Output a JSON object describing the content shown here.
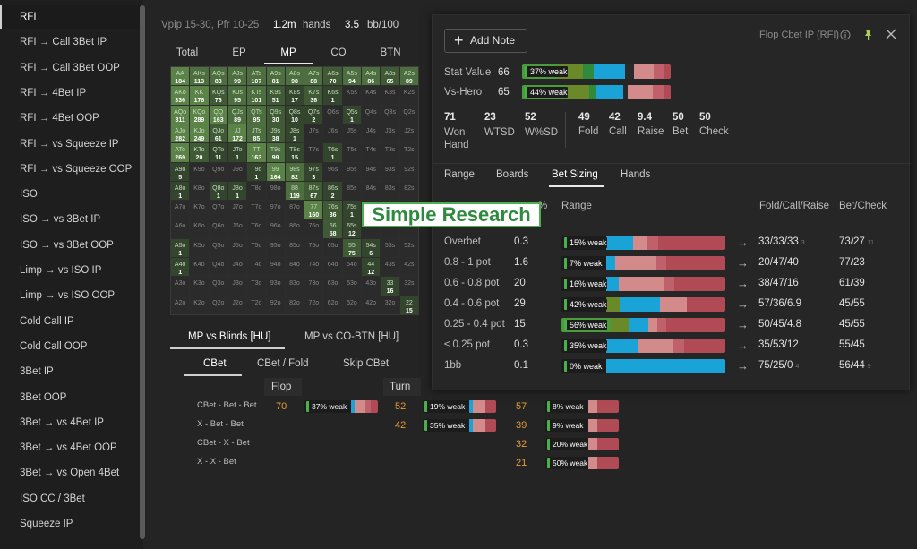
{
  "sidebar": {
    "items": [
      "RFI",
      "RFI → Call 3Bet IP",
      "RFI → Call 3Bet OOP",
      "RFI → 4Bet IP",
      "RFI → 4Bet OOP",
      "RFI → vs Squeeze IP",
      "RFI → vs Squeeze OOP",
      "ISO",
      "ISO → vs 3Bet IP",
      "ISO → vs 3Bet OOP",
      "Limp → vs ISO IP",
      "Limp → vs ISO OOP",
      "Cold Call IP",
      "Cold Call OOP",
      "3Bet IP",
      "3Bet OOP",
      "3Bet → vs 4Bet IP",
      "3Bet → vs 4Bet OOP",
      "3Bet → vs Open 4Bet",
      "ISO CC / 3Bet",
      "Squeeze IP"
    ]
  },
  "filter": {
    "text": "Vpip 15-30, Pfr 10-25",
    "hands_value": "1.2m",
    "hands_label": "hands",
    "bb_value": "3.5",
    "bb_label": "bb/100"
  },
  "position_tabs": [
    "Total",
    "EP",
    "MP",
    "CO",
    "BTN"
  ],
  "range_grid": [
    [
      "AA|184",
      "AKs|113",
      "AQs|83",
      "AJs|99",
      "ATs|107",
      "A9s|81",
      "A8s|98",
      "A7s|88",
      "A6s|70",
      "A5s|94",
      "A4s|86",
      "A3s|65",
      "A2s|89"
    ],
    [
      "AKo|336",
      "KK|176",
      "KQs|76",
      "KJs|95",
      "KTs|101",
      "K9s|51",
      "K8s|17",
      "K7s|36",
      "K6s|1",
      "K5s",
      "K4s",
      "K3s",
      "K2s"
    ],
    [
      "AQo|311",
      "KQo|289",
      "QQ|163",
      "QJs|89",
      "QTs|95",
      "Q9s|30",
      "Q8s|10",
      "Q7s|2",
      "Q6s",
      "Q5s|1",
      "Q4s",
      "Q3s",
      "Q2s"
    ],
    [
      "AJo|282",
      "KJo|249",
      "QJo|61",
      "JJ|172",
      "JTs|85",
      "J9s|38",
      "J8s|1",
      "J7s",
      "J6s",
      "J5s",
      "J4s",
      "J3s",
      "J2s"
    ],
    [
      "ATo|269",
      "KTo|20",
      "QTo|11",
      "JTo|1",
      "TT|163",
      "T9s|99",
      "T8s|15",
      "T7s",
      "T6s|1",
      "T5s",
      "T4s",
      "T3s",
      "T2s"
    ],
    [
      "A9o|5",
      "K9o",
      "Q9o",
      "J9o",
      "T9o|1",
      "99|164",
      "98s|82",
      "97s|3",
      "96s",
      "95s",
      "94s",
      "93s",
      "92s"
    ],
    [
      "A8o|1",
      "K8o",
      "Q8o|1",
      "J8o|1",
      "T8o",
      "98o",
      "88|119",
      "87s|67",
      "86s|2",
      "85s",
      "84s",
      "83s",
      "82s"
    ],
    [
      "A7o",
      "K7o",
      "Q7o",
      "J7o",
      "T7o",
      "97o",
      "87o",
      "77|160",
      "76s|36",
      "75s|1",
      "74s",
      "73s",
      "72s"
    ],
    [
      "A6o",
      "K6o",
      "Q6o",
      "J6o",
      "T6o",
      "96o",
      "86o",
      "76o",
      "66|58",
      "65s|12",
      "64s",
      "63s",
      "62s"
    ],
    [
      "A5o|1",
      "K5o",
      "Q5o",
      "J5o",
      "T5o",
      "95o",
      "85o",
      "75o",
      "65o",
      "55|75",
      "54s|6",
      "53s",
      "52s"
    ],
    [
      "A4o|1",
      "K4o",
      "Q4o",
      "J4o",
      "T4o",
      "94o",
      "84o",
      "74o",
      "64o",
      "54o",
      "44|12",
      "43s",
      "42s"
    ],
    [
      "A3o",
      "K3o",
      "Q3o",
      "J3o",
      "T3o",
      "93o",
      "83o",
      "73o",
      "63o",
      "53o",
      "43o",
      "33|16",
      "32s"
    ],
    [
      "A2o",
      "K2o",
      "Q2o",
      "J2o",
      "T2o",
      "92o",
      "82o",
      "72o",
      "62o",
      "52o",
      "42o",
      "32o",
      "22|15"
    ]
  ],
  "lower": {
    "tabs": [
      "MP vs Blinds [HU]",
      "MP vs CO-BTN [HU]"
    ],
    "subtabs": [
      "CBet",
      "CBet / Fold",
      "Skip CBet"
    ],
    "col_flop": "Flop",
    "col_turn": "Turn",
    "rows": [
      "CBet - Bet - Bet",
      "X - Bet - Bet",
      "CBet - X - Bet",
      "X - X - Bet"
    ],
    "flop_val": "70",
    "flop_pill": "37% weak",
    "turn_vals": [
      "52",
      "42"
    ],
    "turn_pills": [
      "19% weak",
      "35% weak"
    ],
    "river_vals": [
      "57",
      "39",
      "32",
      "21"
    ],
    "river_pills": [
      "8% weak",
      "9% weak",
      "20% weak",
      "50% weak"
    ]
  },
  "panel": {
    "add_note": "Add Note",
    "title": "Flop Cbet IP (RFI)",
    "stat_value_label": "Stat Value",
    "stat_value": "66",
    "stat_pill": "37% weak",
    "vs_hero_label": "Vs-Hero",
    "vs_hero": "65",
    "vs_hero_pill": "44% weak",
    "stats_left": [
      {
        "value": "71",
        "label": "Won Hand"
      },
      {
        "value": "23",
        "label": "WTSD"
      },
      {
        "value": "52",
        "label": "W%SD"
      }
    ],
    "stats_right": [
      {
        "value": "49",
        "label": "Fold"
      },
      {
        "value": "42",
        "label": "Call"
      },
      {
        "value": "9.4",
        "label": "Raise"
      },
      {
        "value": "50",
        "label": "Bet"
      },
      {
        "value": "50",
        "label": "Check"
      }
    ],
    "tabs": [
      "Range",
      "Boards",
      "Bet Sizing",
      "Hands"
    ],
    "header_pct": "%",
    "header_range": "Range",
    "header_fcr": "Fold/Call/Raise",
    "header_bc": "Bet/Check",
    "sizing_rows": [
      {
        "label": "Overbet",
        "pct": "0.3",
        "pill": "15% weak",
        "fcr": "33/33/33",
        "fcr_small": "3",
        "bc": "73/27",
        "bc_small": "11"
      },
      {
        "label": "0.8 - 1 pot",
        "pct": "1.6",
        "pill": "7% weak",
        "fcr": "20/47/40",
        "fcr_small": "",
        "bc": "77/23",
        "bc_small": ""
      },
      {
        "label": "0.6 - 0.8 pot",
        "pct": "20",
        "pill": "16% weak",
        "fcr": "38/47/16",
        "fcr_small": "",
        "bc": "61/39",
        "bc_small": ""
      },
      {
        "label": "0.4 - 0.6 pot",
        "pct": "29",
        "pill": "42% weak",
        "fcr": "57/36/6.9",
        "fcr_small": "",
        "bc": "45/55",
        "bc_small": ""
      },
      {
        "label": "0.25 - 0.4 pot",
        "pct": "15",
        "pill": "56% weak",
        "fcr": "50/45/4.8",
        "fcr_small": "",
        "bc": "45/55",
        "bc_small": ""
      },
      {
        "label": "≤ 0.25 pot",
        "pct": "0.3",
        "pill": "35% weak",
        "fcr": "35/53/12",
        "fcr_small": "",
        "bc": "55/45",
        "bc_small": ""
      },
      {
        "label": "1bb",
        "pct": "0.1",
        "pill": "0% weak",
        "fcr": "75/25/0",
        "fcr_small": "4",
        "bc": "56/44",
        "bc_small": "9"
      }
    ]
  },
  "watermark": "Simple Research"
}
